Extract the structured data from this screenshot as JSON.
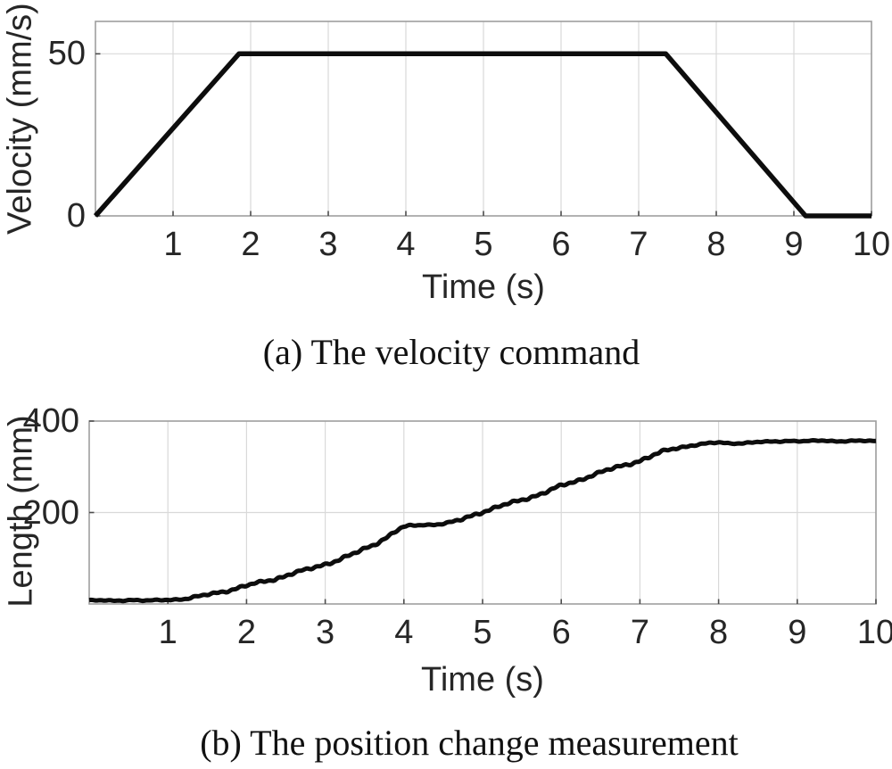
{
  "page": {
    "background": "#ffffff"
  },
  "colors": {
    "line": "#0d0d0d",
    "grid": "#d9d9d9",
    "axis": "#9e9e9e",
    "tick_mark": "#4d4d4d",
    "text": "#262626"
  },
  "chart_data": [
    {
      "id": "velocity",
      "type": "line",
      "caption": "(a) The velocity command",
      "xlabel": "Time (s)",
      "ylabel": "Velocity (mm/s)",
      "xlim": [
        0,
        10
      ],
      "ylim": [
        0,
        60
      ],
      "xticks": [
        1,
        2,
        3,
        4,
        5,
        6,
        7,
        8,
        9,
        10
      ],
      "yticks": [
        0,
        50
      ],
      "ytick_labels": [
        "0",
        "50"
      ],
      "grid": true,
      "legend": "none",
      "series": [
        {
          "name": "velocity command",
          "noisy": false,
          "x": [
            0,
            1.85,
            7.35,
            9.15,
            10
          ],
          "y": [
            0,
            50,
            50,
            0,
            0
          ]
        }
      ]
    },
    {
      "id": "position",
      "type": "line",
      "caption": "(b) The position change measurement",
      "xlabel": "Time (s)",
      "ylabel": "Length (mm)",
      "xlim": [
        0,
        10
      ],
      "ylim": [
        0,
        400
      ],
      "xticks": [
        1,
        2,
        3,
        4,
        5,
        6,
        7,
        8,
        9,
        10
      ],
      "yticks": [
        200,
        400
      ],
      "ytick_labels": [
        "200",
        "400"
      ],
      "grid": true,
      "legend": "none",
      "series": [
        {
          "name": "position measurement",
          "noisy": true,
          "x": [
            0,
            0.3,
            0.55,
            0.75,
            1.0,
            1.2,
            1.45,
            1.7,
            1.95,
            2.15,
            2.35,
            2.6,
            2.8,
            3.0,
            3.2,
            3.4,
            3.6,
            3.75,
            3.9,
            4.0,
            4.1,
            4.25,
            4.4,
            4.55,
            4.7,
            4.85,
            5.0,
            5.2,
            5.4,
            5.6,
            5.8,
            6.0,
            6.2,
            6.4,
            6.6,
            6.8,
            7.0,
            7.2,
            7.35,
            7.5,
            7.65,
            7.8,
            8.0,
            8.15,
            8.3,
            8.5,
            8.7,
            8.9,
            9.1,
            9.3,
            9.5,
            9.7,
            10.0
          ],
          "y": [
            8,
            7,
            9,
            7,
            9,
            11,
            18,
            27,
            38,
            46,
            54,
            68,
            76,
            87,
            99,
            112,
            128,
            143,
            160,
            168,
            171,
            173,
            174,
            177,
            182,
            192,
            202,
            213,
            222,
            233,
            245,
            258,
            269,
            283,
            293,
            303,
            314,
            327,
            336,
            342,
            347,
            350,
            353,
            351,
            352,
            354,
            355,
            357,
            356,
            357,
            356,
            357,
            356
          ]
        }
      ]
    }
  ]
}
